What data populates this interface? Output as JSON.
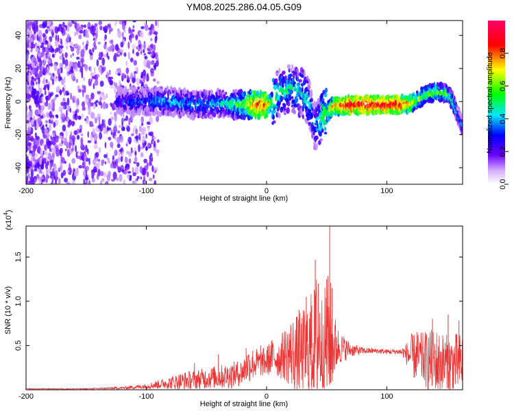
{
  "title": "YM08.2025.286.04.05.G09",
  "chart_data": [
    {
      "type": "heatmap",
      "name": "spectrogram",
      "xlabel": "Height of straight line (km)",
      "ylabel": "Frequency (Hz)",
      "xlim": [
        -200,
        163
      ],
      "ylim": [
        -50,
        49
      ],
      "xticks": [
        -200,
        -100,
        0,
        100
      ],
      "yticks": [
        -40,
        -20,
        0,
        20,
        40
      ],
      "xtick_labels": [
        "-200",
        "-100",
        "0",
        "100"
      ],
      "ytick_labels": [
        "-40",
        "-20",
        "0",
        "20",
        "40"
      ],
      "grid": false,
      "ridge": {
        "height_km": [
          -200,
          -150,
          -120,
          -100,
          -80,
          -60,
          -40,
          -20,
          -10,
          0,
          5,
          10,
          20,
          30,
          35,
          40,
          45,
          55,
          70,
          90,
          110,
          120,
          130,
          140,
          150,
          155,
          160,
          163
        ],
        "frequency_hz": [
          0,
          0,
          0,
          0,
          0,
          -2,
          -1,
          -2,
          -2,
          -2,
          0,
          5,
          8,
          5,
          0,
          -15,
          -10,
          -3,
          -2,
          -2,
          -2,
          -1,
          3,
          6,
          5,
          0,
          -10,
          -15
        ],
        "amplitude": [
          0.1,
          0.1,
          0.3,
          0.35,
          0.4,
          0.4,
          0.4,
          0.55,
          0.8,
          0.8,
          0.6,
          0.45,
          0.45,
          0.45,
          0.45,
          0.35,
          0.5,
          0.75,
          0.9,
          0.9,
          0.9,
          0.7,
          0.55,
          0.6,
          0.55,
          0.5,
          0.4,
          0.35
        ]
      },
      "colorbar": {
        "label": "Normalized spectral amplitude",
        "range": [
          0,
          1
        ],
        "ticks": [
          0.0,
          0.2,
          0.4,
          0.6,
          0.8
        ],
        "tick_labels": [
          "0.0",
          "0.2",
          "0.4",
          "0.6",
          "0.8"
        ],
        "colors": [
          "#ffffff",
          "#6a00ff",
          "#0000ff",
          "#00e5ff",
          "#00ff00",
          "#ffff00",
          "#ff0000",
          "#ff0066"
        ]
      }
    },
    {
      "type": "line",
      "name": "snr",
      "xlabel": "Height of straight line (km)",
      "ylabel": "SNR (10 * v/v)",
      "y_multiplier": "(x10",
      "y_multiplier_exp": "4",
      "y_multiplier_close": ")",
      "xlim": [
        -200,
        163
      ],
      "ylim": [
        0,
        1.85
      ],
      "xticks": [
        -200,
        -100,
        0,
        100
      ],
      "yticks": [
        0.5,
        1.0,
        1.5
      ],
      "xtick_labels": [
        "-200",
        "-100",
        "0",
        "100"
      ],
      "ytick_labels": [
        "0.5",
        "1.0",
        "1.5"
      ],
      "color": "#ee3333",
      "grid": false,
      "envelope": {
        "height_km": [
          -200,
          -150,
          -120,
          -100,
          -85,
          -70,
          -50,
          -30,
          -20,
          -15,
          -10,
          -5,
          0,
          5,
          10,
          15,
          20,
          25,
          30,
          35,
          40,
          42,
          45,
          50,
          52,
          55,
          60,
          70,
          80,
          90,
          100,
          110,
          115,
          120,
          130,
          140,
          150,
          160,
          163
        ],
        "center": [
          0.01,
          0.01,
          0.02,
          0.04,
          0.07,
          0.1,
          0.13,
          0.16,
          0.2,
          0.28,
          0.3,
          0.3,
          0.32,
          0.38,
          0.35,
          0.4,
          0.42,
          0.4,
          0.4,
          0.45,
          0.5,
          0.55,
          0.5,
          0.5,
          0.55,
          0.5,
          0.48,
          0.45,
          0.44,
          0.44,
          0.43,
          0.43,
          0.42,
          0.38,
          0.35,
          0.3,
          0.28,
          0.3,
          0.3
        ],
        "spread": [
          0.005,
          0.005,
          0.015,
          0.03,
          0.06,
          0.1,
          0.12,
          0.15,
          0.15,
          0.2,
          0.18,
          0.15,
          0.18,
          0.2,
          0.22,
          0.3,
          0.4,
          0.45,
          0.5,
          0.6,
          0.7,
          0.85,
          0.6,
          0.7,
          0.9,
          0.45,
          0.2,
          0.08,
          0.04,
          0.03,
          0.03,
          0.03,
          0.08,
          0.25,
          0.3,
          0.4,
          0.35,
          0.35,
          0.35
        ]
      },
      "peaks": [
        {
          "x": 40.5,
          "y": 1.47
        },
        {
          "x": 52.5,
          "y": 1.85
        },
        {
          "x": 43.0,
          "y": 1.2
        },
        {
          "x": 50.0,
          "y": 1.25
        },
        {
          "x": 54.5,
          "y": 1.15
        },
        {
          "x": 33.0,
          "y": 1.05
        },
        {
          "x": 37.5,
          "y": 0.95
        },
        {
          "x": 27.0,
          "y": 0.9
        },
        {
          "x": 151.0,
          "y": 0.85
        },
        {
          "x": 160.0,
          "y": 0.78
        },
        {
          "x": -17.0,
          "y": 0.47
        },
        {
          "x": -40.0,
          "y": 0.4
        },
        {
          "x": -60.0,
          "y": 0.3
        },
        {
          "x": -5.0,
          "y": 0.5
        },
        {
          "x": 138.0,
          "y": 0.8
        },
        {
          "x": 125.0,
          "y": 0.65
        }
      ]
    }
  ]
}
